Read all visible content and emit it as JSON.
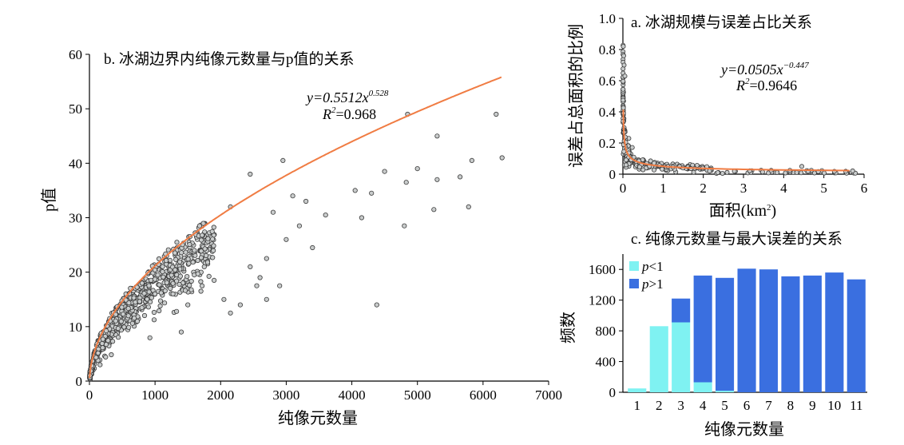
{
  "chart_data": [
    {
      "id": "b",
      "type": "scatter",
      "title": "b. 冰湖边界内纯像元数量与p值的关系",
      "xlabel": "纯像元数量",
      "ylabel": "p值",
      "xlim": [
        0,
        7000
      ],
      "ylim": [
        0,
        60
      ],
      "xticks": [
        0,
        1000,
        2000,
        3000,
        4000,
        5000,
        6000,
        7000
      ],
      "yticks": [
        0,
        10,
        20,
        30,
        40,
        50,
        60
      ],
      "fit": {
        "a": 0.5512,
        "b": 0.528,
        "equation": "y=0.5512x",
        "exponent": "0.528",
        "r2_label": "R",
        "r2_value": "=0.968",
        "color": "#F07C43"
      },
      "outliers": [
        [
          2450,
          38
        ],
        [
          2950,
          40.5
        ],
        [
          3300,
          33
        ],
        [
          3600,
          30.5
        ],
        [
          4050,
          35
        ],
        [
          4150,
          30
        ],
        [
          4300,
          34.5
        ],
        [
          4380,
          14
        ],
        [
          4500,
          38.5
        ],
        [
          4800,
          28.5
        ],
        [
          4830,
          36.5
        ],
        [
          4850,
          49
        ],
        [
          5000,
          39
        ],
        [
          5250,
          31.5
        ],
        [
          5300,
          37
        ],
        [
          5300,
          45
        ],
        [
          5650,
          37.5
        ],
        [
          5780,
          32
        ],
        [
          5830,
          40.5
        ],
        [
          6200,
          49
        ],
        [
          6290,
          41
        ],
        [
          2150,
          32
        ],
        [
          2700,
          22.5
        ],
        [
          2900,
          17.5
        ],
        [
          2700,
          15
        ],
        [
          2550,
          17.5
        ],
        [
          2300,
          14
        ],
        [
          2150,
          12.5
        ],
        [
          1400,
          9
        ],
        [
          3400,
          24.5
        ],
        [
          3200,
          28.5
        ],
        [
          3100,
          34
        ],
        [
          2800,
          31
        ],
        [
          3000,
          26
        ],
        [
          2600,
          19
        ],
        [
          2450,
          21
        ],
        [
          2050,
          15
        ],
        [
          1900,
          18.5
        ],
        [
          1750,
          21
        ],
        [
          1600,
          24
        ],
        [
          1500,
          14
        ],
        [
          1700,
          16.5
        ]
      ],
      "point_style": {
        "fill": "#C9CCCC",
        "stroke": "#3A3A3A"
      }
    },
    {
      "id": "a",
      "type": "scatter",
      "title": "a. 冰湖规模与误差占比关系",
      "xlabel": "面积(km",
      "xlabel_sup": "2",
      "xlabel_end": ")",
      "ylabel": "误差占总面积的比例",
      "xlim": [
        0,
        6
      ],
      "ylim": [
        0,
        1.0
      ],
      "xticks": [
        0,
        1,
        2,
        3,
        4,
        5,
        6
      ],
      "yticks": [
        0,
        0.2,
        0.4,
        0.6,
        0.8,
        1.0
      ],
      "ytick_labels": [
        "0",
        "0.2",
        "0.4",
        "0.6",
        "0.8",
        "1.0"
      ],
      "fit": {
        "a": 0.0505,
        "b": -0.447,
        "equation": "y=0.0505x",
        "exponent": "−0.447",
        "r2_label": "R",
        "r2_value": "=0.9646",
        "color": "#F07C43"
      },
      "point_style": {
        "fill": "#C9CCCC",
        "stroke": "#3A3A3A"
      }
    },
    {
      "id": "c",
      "type": "bar",
      "stacked": true,
      "title": "c. 纯像元数量与最大误差的关系",
      "xlabel": "纯像元数量",
      "ylabel": "频数",
      "categories": [
        "1",
        "2",
        "3",
        "4",
        "5",
        "6",
        "7",
        "8",
        "9",
        "10",
        "11"
      ],
      "ylim": [
        0,
        1800
      ],
      "yticks": [
        0,
        400,
        800,
        1200,
        1600
      ],
      "legend_position": "top-left",
      "series": [
        {
          "name": "p<1",
          "name_var": "p",
          "name_rest": "<1",
          "color": "#7FF2F2",
          "values": [
            50,
            860,
            910,
            130,
            20,
            0,
            0,
            0,
            0,
            0,
            0
          ]
        },
        {
          "name": "p>1",
          "name_var": "p",
          "name_rest": ">1",
          "color": "#3A6FE0",
          "values": [
            0,
            0,
            310,
            1390,
            1470,
            1610,
            1600,
            1510,
            1520,
            1560,
            1470
          ]
        }
      ]
    }
  ]
}
